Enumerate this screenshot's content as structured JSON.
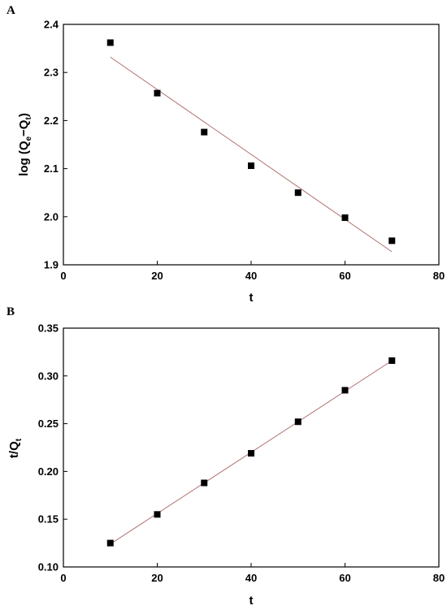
{
  "line_color": "#b07070",
  "marker_color": "#000000",
  "chart_data": [
    {
      "panel_label": "A",
      "type": "scatter",
      "xlabel": "t",
      "ylabel": "log (Qₑ−Qₜ)",
      "ylabel_main": "log (Q",
      "ylabel_sub1": "e",
      "ylabel_mid": "−Q",
      "ylabel_sub2": "t",
      "ylabel_close": ")",
      "xlim": [
        0,
        80
      ],
      "ylim": [
        1.9,
        2.4
      ],
      "x_ticks": [
        "0",
        "20",
        "40",
        "60",
        "80"
      ],
      "y_ticks": [
        "1.9",
        "2.0",
        "2.1",
        "2.2",
        "2.3",
        "2.4"
      ],
      "points": [
        {
          "x": 10,
          "y": 2.362
        },
        {
          "x": 20,
          "y": 2.257
        },
        {
          "x": 30,
          "y": 2.176
        },
        {
          "x": 40,
          "y": 2.106
        },
        {
          "x": 50,
          "y": 2.05
        },
        {
          "x": 60,
          "y": 1.998
        },
        {
          "x": 70,
          "y": 1.95
        }
      ],
      "fit_line": {
        "x": [
          10,
          70
        ],
        "y": [
          2.332,
          1.927
        ]
      },
      "grid": false,
      "legend": "none"
    },
    {
      "panel_label": "B",
      "type": "scatter",
      "xlabel": "t",
      "ylabel": "t/Qₜ",
      "ylabel_main": "t/Q",
      "ylabel_sub": "t",
      "xlim": [
        0,
        80
      ],
      "ylim": [
        0.1,
        0.35
      ],
      "x_ticks": [
        "0",
        "20",
        "40",
        "60",
        "80"
      ],
      "y_ticks": [
        "0.10",
        "0.15",
        "0.20",
        "0.25",
        "0.30",
        "0.35"
      ],
      "points": [
        {
          "x": 10,
          "y": 0.125
        },
        {
          "x": 20,
          "y": 0.155
        },
        {
          "x": 30,
          "y": 0.188
        },
        {
          "x": 40,
          "y": 0.219
        },
        {
          "x": 50,
          "y": 0.252
        },
        {
          "x": 60,
          "y": 0.285
        },
        {
          "x": 70,
          "y": 0.316
        }
      ],
      "fit_line": {
        "x": [
          10,
          70
        ],
        "y": [
          0.124,
          0.316
        ]
      },
      "grid": false,
      "legend": "none"
    }
  ]
}
